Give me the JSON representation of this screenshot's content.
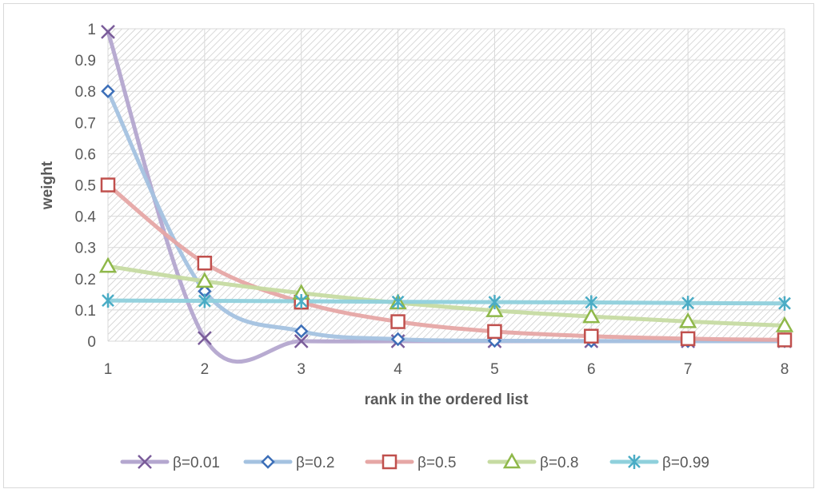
{
  "chart_data": {
    "type": "line",
    "xlabel": "rank in the ordered list",
    "ylabel": "weight",
    "title": "",
    "x": [
      1,
      2,
      3,
      4,
      5,
      6,
      7,
      8
    ],
    "xlim": [
      1,
      8
    ],
    "ylim": [
      0,
      1
    ],
    "xticks": [
      "1",
      "2",
      "3",
      "4",
      "5",
      "6",
      "7",
      "8"
    ],
    "yticks": [
      "0",
      "0.1",
      "0.2",
      "0.3",
      "0.4",
      "0.5",
      "0.6",
      "0.7",
      "0.8",
      "0.9",
      "1"
    ],
    "grid": true,
    "legend_position": "bottom",
    "series": [
      {
        "name": "β=0.01",
        "marker": "x",
        "line_color": "#b4a7cf",
        "marker_color": "#7a5c9a",
        "values": [
          0.99,
          0.0099,
          9.9e-05,
          9.9e-07,
          0.0,
          0.0,
          0.0,
          0.0
        ]
      },
      {
        "name": "β=0.2",
        "marker": "diamond",
        "line_color": "#a4c2e0",
        "marker_color": "#3d6fb8",
        "values": [
          0.8,
          0.16,
          0.032,
          0.0064,
          0.0013,
          0.0003,
          0.0001,
          0.0
        ]
      },
      {
        "name": "β=0.5",
        "marker": "square",
        "line_color": "#e6a7a5",
        "marker_color": "#c0504d",
        "values": [
          0.5,
          0.25,
          0.125,
          0.0625,
          0.031,
          0.016,
          0.008,
          0.004
        ]
      },
      {
        "name": "β=0.8",
        "marker": "triangle",
        "line_color": "#c6dba2",
        "marker_color": "#8fb84a",
        "values": [
          0.24,
          0.192,
          0.154,
          0.123,
          0.098,
          0.079,
          0.063,
          0.05
        ]
      },
      {
        "name": "β=0.99",
        "marker": "star",
        "line_color": "#8fd0dc",
        "marker_color": "#4aacc5",
        "values": [
          0.13,
          0.129,
          0.128,
          0.126,
          0.125,
          0.124,
          0.122,
          0.121
        ]
      }
    ]
  }
}
